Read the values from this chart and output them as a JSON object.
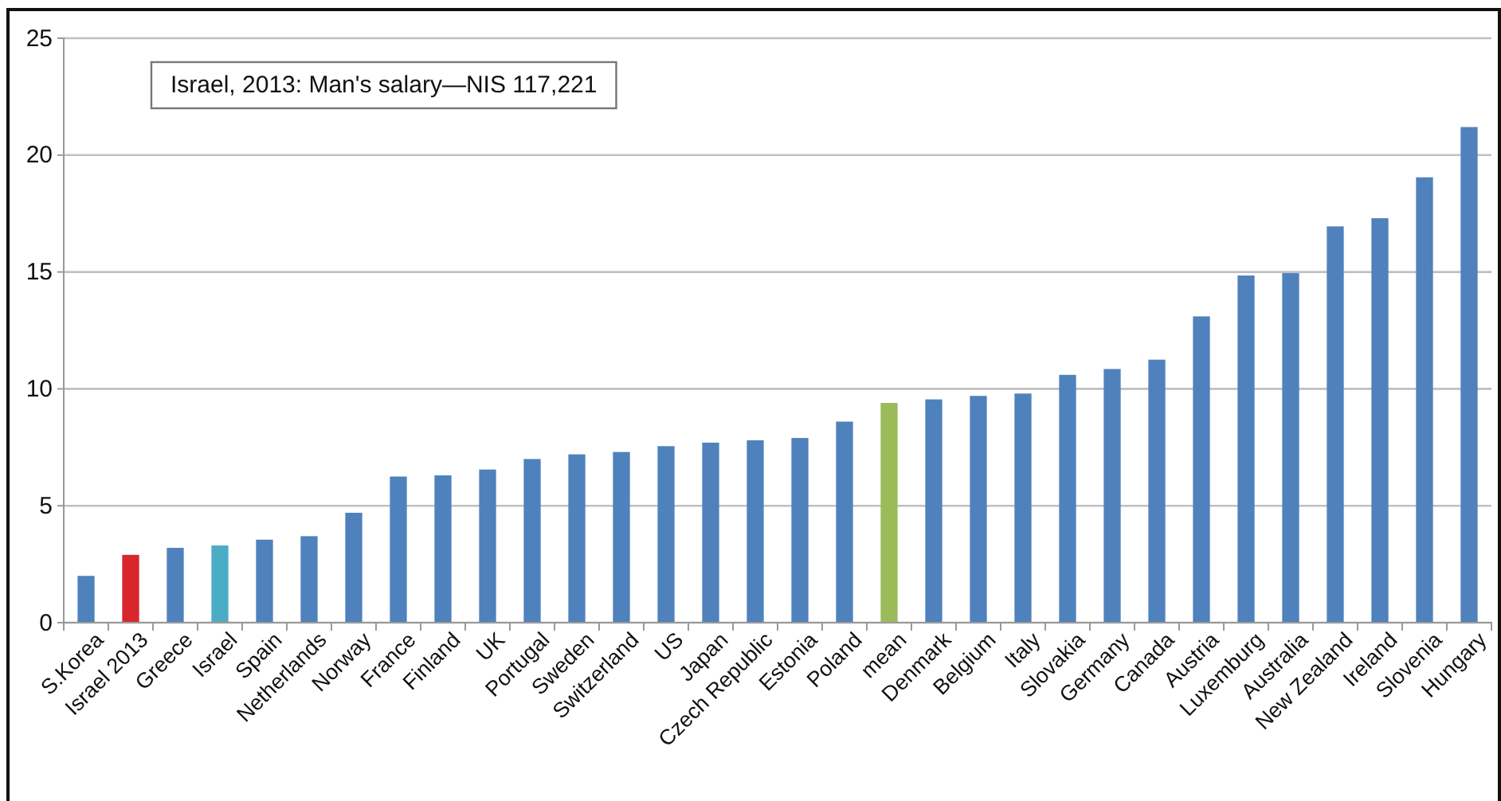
{
  "chart_data": {
    "type": "bar",
    "categories": [
      "S.Korea",
      "Israel 2013",
      "Greece",
      "Israel",
      "Spain",
      "Netherlands",
      "Norway",
      "France",
      "Finland",
      "UK",
      "Portugal",
      "Sweden",
      "Switzerland",
      "US",
      "Japan",
      "Czech Republic",
      "Estonia",
      "Poland",
      "mean",
      "Denmark",
      "Belgium",
      "Italy",
      "Slovakia",
      "Germany",
      "Canada",
      "Austria",
      "Luxemburg",
      "Australia",
      "New Zealand",
      "Ireland",
      "Slovenia",
      "Hungary"
    ],
    "values": [
      2.0,
      2.9,
      3.2,
      3.3,
      3.55,
      3.7,
      4.7,
      6.25,
      6.3,
      6.55,
      7.0,
      7.2,
      7.3,
      7.55,
      7.7,
      7.8,
      7.9,
      8.6,
      9.4,
      9.55,
      9.7,
      9.8,
      10.6,
      10.85,
      11.25,
      13.1,
      14.85,
      14.95,
      16.95,
      17.3,
      19.05,
      21.2
    ],
    "colors": [
      "#4f81bd",
      "#d9262c",
      "#4f81bd",
      "#4bacc6",
      "#4f81bd",
      "#4f81bd",
      "#4f81bd",
      "#4f81bd",
      "#4f81bd",
      "#4f81bd",
      "#4f81bd",
      "#4f81bd",
      "#4f81bd",
      "#4f81bd",
      "#4f81bd",
      "#4f81bd",
      "#4f81bd",
      "#4f81bd",
      "#9bbb59",
      "#4f81bd",
      "#4f81bd",
      "#4f81bd",
      "#4f81bd",
      "#4f81bd",
      "#4f81bd",
      "#4f81bd",
      "#4f81bd",
      "#4f81bd",
      "#4f81bd",
      "#4f81bd",
      "#4f81bd",
      "#4f81bd"
    ],
    "ylim": [
      0,
      25
    ],
    "yticks": [
      0,
      5,
      10,
      15,
      20,
      25
    ],
    "grid": "y",
    "annotations": [
      "Israel, 2013: Man's salary—NIS 117,221"
    ]
  }
}
